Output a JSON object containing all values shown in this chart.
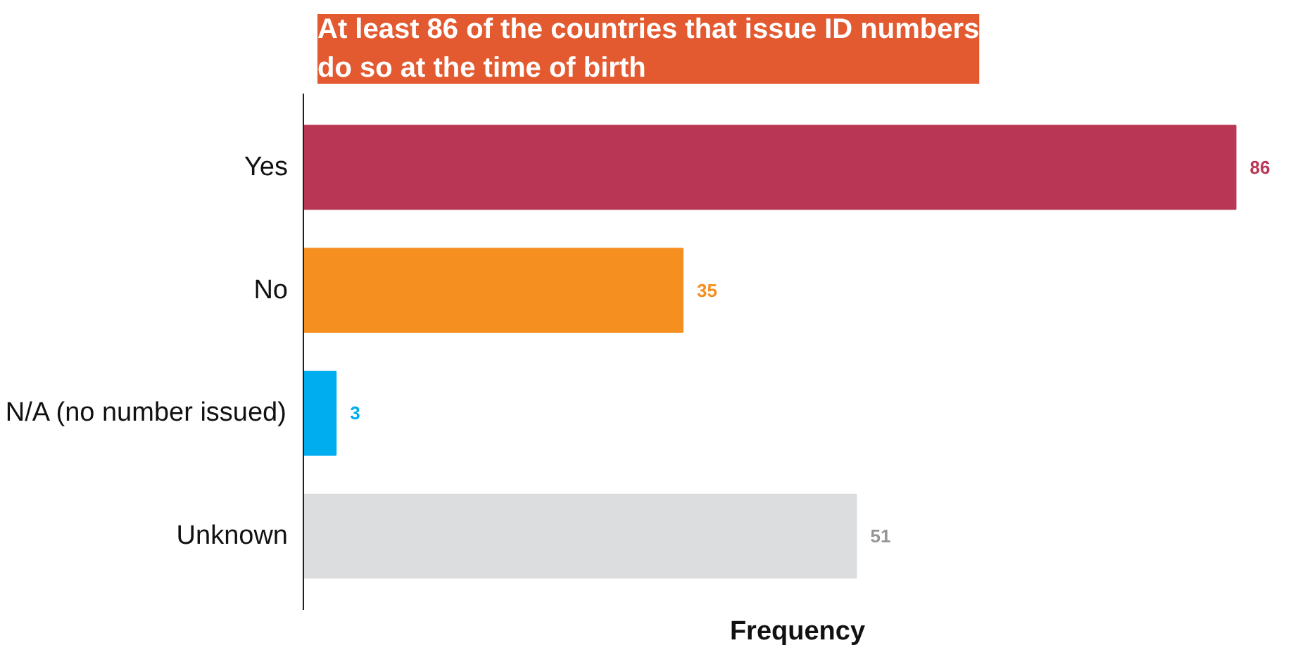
{
  "chart_data": {
    "type": "bar",
    "orientation": "horizontal",
    "title": "At least 86 of the countries that issue ID numbers\ndo so at the time of birth",
    "categories": [
      "Yes",
      "No",
      "N/A (no number issued)",
      "Unknown"
    ],
    "values": [
      86,
      35,
      3,
      51
    ],
    "colors": [
      "#b93654",
      "#f58f20",
      "#00aeef",
      "#dcdddf"
    ],
    "data_labels": true,
    "xlabel": "Frequency",
    "tick_labels": "y",
    "grid": false
  }
}
